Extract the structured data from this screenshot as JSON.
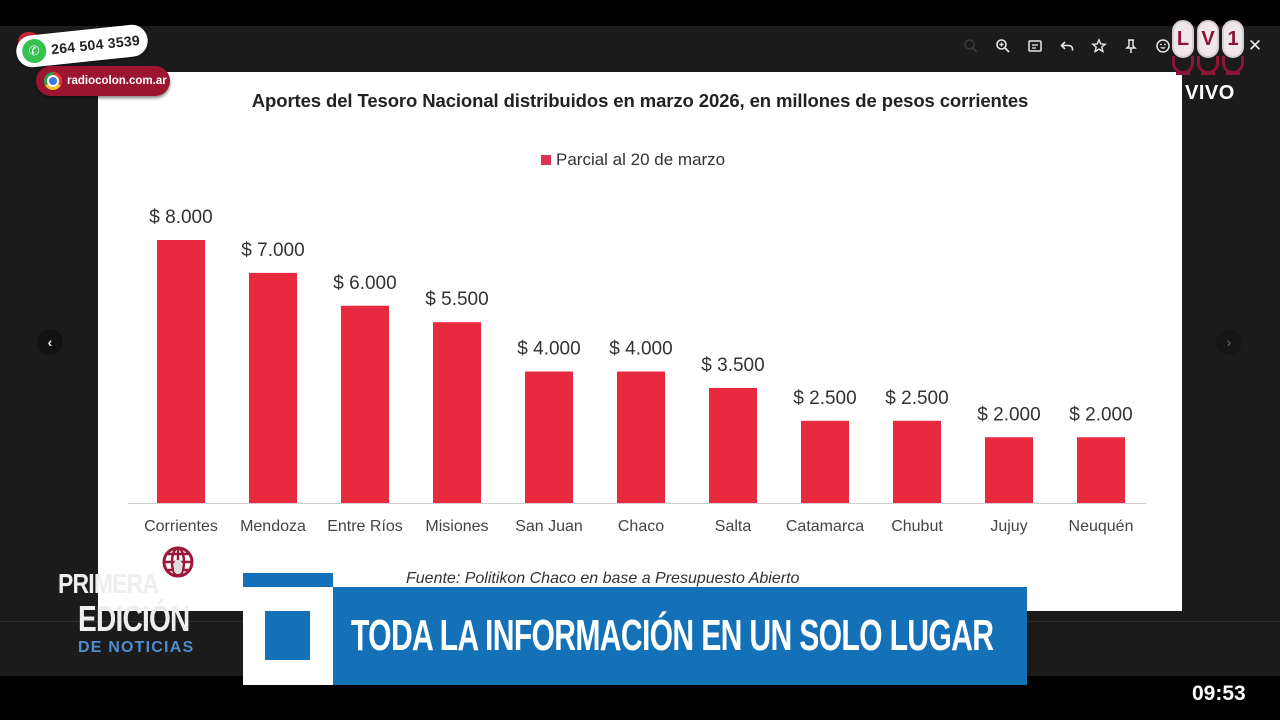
{
  "overlay": {
    "whatsapp_number": "264 504 3539",
    "website": "radiocolon.com.ar",
    "station_letters": [
      "L",
      "V",
      "1"
    ],
    "live_label": "VIVO",
    "show_name": {
      "line1": "PRIMERA",
      "line2": "EDICIÓN",
      "line3": "DE NOTICIAS"
    },
    "banner_text": "TODA LA INFORMACIÓN EN UN SOLO LUGAR",
    "clock": "09:53"
  },
  "viewer": {
    "toolbar_icons": [
      "search-icon",
      "zoom-in-icon",
      "caption-icon",
      "reply-icon",
      "star-icon",
      "pin-icon",
      "emoji-icon"
    ],
    "close_label": "✕",
    "prev_label": "‹",
    "next_label": "›"
  },
  "colors": {
    "bar": "#e8293f",
    "brand_blue": "#1471b8",
    "brand_maroon": "#8c1436"
  },
  "chart_data": {
    "type": "bar",
    "title": "Aportes del Tesoro Nacional distribuidos en marzo 2026, en millones de pesos corrientes",
    "legend": [
      "Parcial al 20 de marzo"
    ],
    "legend_position": "top-center",
    "xlabel": "",
    "ylabel": "",
    "ylim": [
      0,
      8000
    ],
    "grid": false,
    "categories": [
      "Corrientes",
      "Mendoza",
      "Entre Ríos",
      "Misiones",
      "San Juan",
      "Chaco",
      "Salta",
      "Catamarca",
      "Chubut",
      "Jujuy",
      "Neuquén"
    ],
    "series": [
      {
        "name": "Parcial al 20 de marzo",
        "values": [
          8000,
          7000,
          6000,
          5500,
          4000,
          4000,
          3500,
          2500,
          2500,
          2000,
          2000
        ]
      }
    ],
    "data_labels": [
      "$ 8.000",
      "$ 7.000",
      "$ 6.000",
      "$ 5.500",
      "$ 4.000",
      "$ 4.000",
      "$ 3.500",
      "$ 2.500",
      "$ 2.500",
      "$ 2.000",
      "$ 2.000"
    ],
    "source": "Fuente: Politikon Chaco en base a Presupuesto Abierto"
  }
}
